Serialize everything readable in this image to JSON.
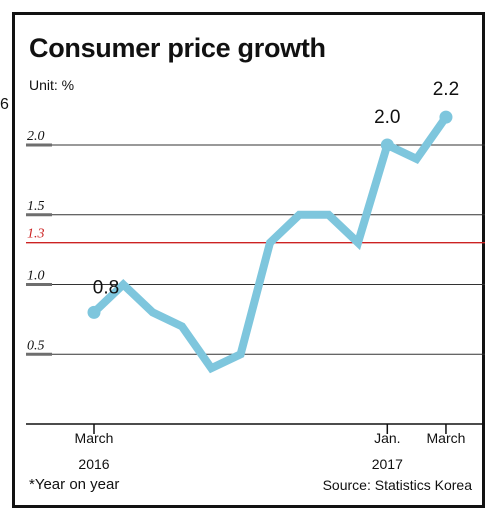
{
  "header": {
    "title": "Consumer price growth",
    "unit": "Unit: %"
  },
  "footer": {
    "note": "*Year on year",
    "source": "Source: Statistics Korea"
  },
  "stray_glyph": "6",
  "colors": {
    "line": "#7ec6dd",
    "grid": "#333333",
    "reference": "#cc2222",
    "tick_mark": "#6e6e6e",
    "text": "#111111"
  },
  "chart_data": {
    "type": "line",
    "title": "Consumer price growth",
    "xlabel": "",
    "ylabel": "Unit: %",
    "x": [
      0,
      1,
      2,
      3,
      4,
      5,
      6,
      7,
      8,
      9,
      10,
      11,
      12
    ],
    "x_tick_labels": [
      {
        "index": 0,
        "lines": [
          "March",
          "2016"
        ]
      },
      {
        "index": 10,
        "lines": [
          "Jan.",
          "2017"
        ]
      },
      {
        "index": 12,
        "lines": [
          "March",
          ""
        ]
      }
    ],
    "series": [
      {
        "values": [
          0.8,
          1.0,
          0.8,
          0.7,
          0.4,
          0.5,
          1.3,
          1.5,
          1.5,
          1.3,
          2.0,
          1.9,
          2.2
        ]
      }
    ],
    "data_labels": [
      {
        "index": 0,
        "text": "0.8"
      },
      {
        "index": 10,
        "text": "2.0"
      },
      {
        "index": 12,
        "text": "2.2"
      }
    ],
    "y_ticks": [
      {
        "value": 2.0,
        "label": "2.0"
      },
      {
        "value": 1.5,
        "label": "1.5"
      },
      {
        "value": 1.3,
        "label": "1.3",
        "reference": true
      },
      {
        "value": 1.0,
        "label": "1.0"
      },
      {
        "value": 0.5,
        "label": "0.5"
      }
    ],
    "ylim": [
      0.0,
      2.5
    ],
    "grid": true,
    "legend": "none"
  }
}
